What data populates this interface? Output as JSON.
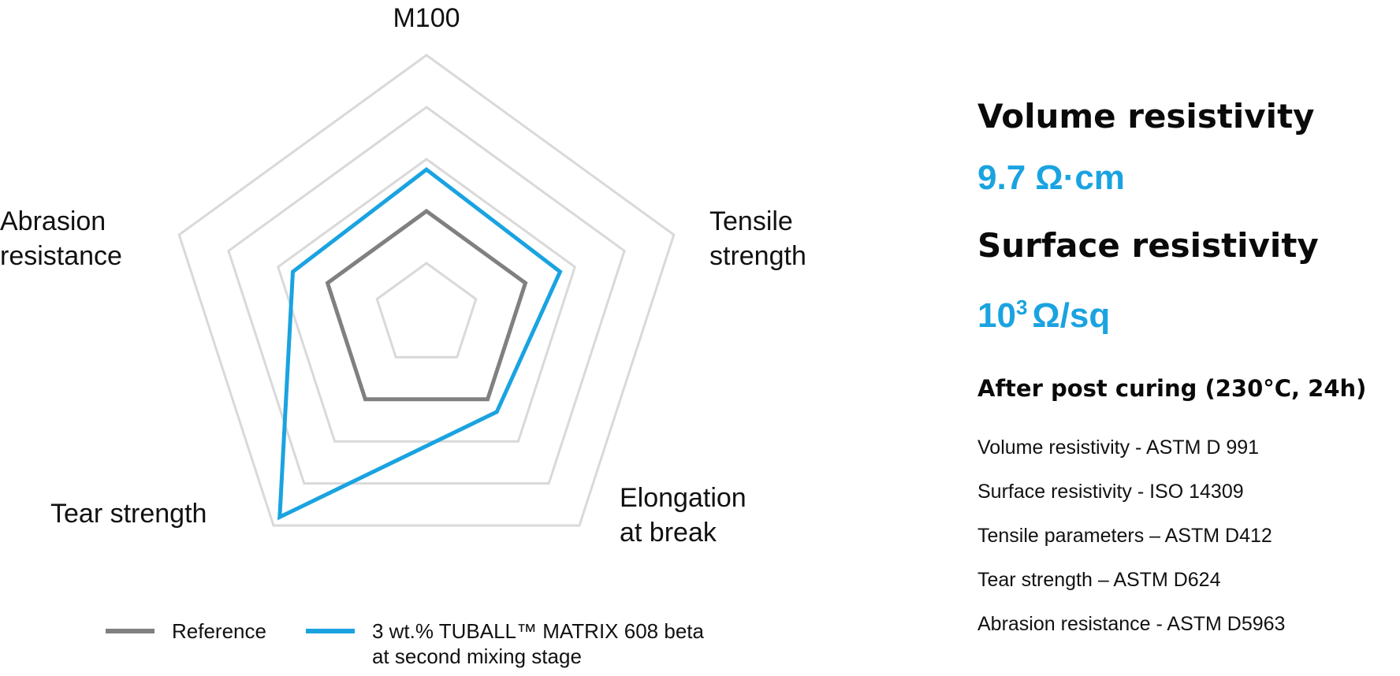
{
  "colors": {
    "reference": "#808080",
    "tuball": "#1aa3e0",
    "grid": "#d9d9d9",
    "accent": "#1aa3e0"
  },
  "chart_data": {
    "type": "radar",
    "axes": [
      "M100",
      "Tensile\nstrength",
      "Elongation\nat break",
      "Tear strength",
      "Abrasion\nresistance"
    ],
    "levels": 5,
    "range": [
      0,
      5
    ],
    "grid": true,
    "legend_position": "bottom",
    "series": [
      {
        "name": "Reference",
        "values": [
          2,
          2,
          2,
          2,
          2
        ]
      },
      {
        "name": "3 wt.%  TUBALL™ MATRIX 608 beta\nat second mixing stage",
        "values": [
          2.8,
          2.7,
          2.3,
          4.8,
          2.7
        ]
      }
    ]
  },
  "right": {
    "volume_heading": "Volume resistivity",
    "volume_value": "9.7 Ω·cm",
    "surface_heading": "Surface resistivity",
    "surface_base": "10",
    "surface_exp": "3",
    "surface_unit": "Ω/sq",
    "after_curing": "After post curing (230°C, 24h)",
    "notes": [
      "Volume resistivity - ASTM D 991",
      "Surface resistivity - ISO 14309",
      "Tensile parameters – ASTM D412",
      "Tear strength – ASTM D624",
      "Abrasion resistance - ASTM D5963"
    ]
  }
}
